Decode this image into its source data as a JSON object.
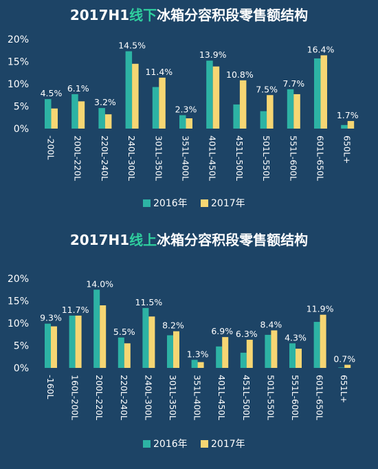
{
  "colors": {
    "background": "#1d4466",
    "series_2016": "#2db3a4",
    "series_2017": "#f6d673",
    "highlight": "#2fcf9e",
    "text": "#ffffff"
  },
  "chart_data": [
    {
      "type": "bar",
      "title_parts": [
        "2017H1",
        "线下",
        "冰箱分容积段零售额结构"
      ],
      "categories": [
        "-200L",
        "200L-220L",
        "220L-240L",
        "240L-300L",
        "301L-350L",
        "351L-400L",
        "401L-450L",
        "451L-500L",
        "501L-550L",
        "551L-600L",
        "601L-650L",
        "650L+"
      ],
      "series": [
        {
          "name": "2016年",
          "values": [
            6.6,
            7.7,
            4.6,
            17.3,
            9.3,
            3.0,
            15.2,
            5.4,
            3.9,
            8.8,
            15.7,
            0.8
          ]
        },
        {
          "name": "2017年",
          "values": [
            4.5,
            6.1,
            3.2,
            14.5,
            11.4,
            2.3,
            13.9,
            10.8,
            7.5,
            7.7,
            16.4,
            1.7
          ]
        }
      ],
      "data_labels": [
        "4.5%",
        "6.1%",
        "3.2%",
        "14.5%",
        "11.4%",
        "2.3%",
        "13.9%",
        "10.8%",
        "7.5%",
        "7.7%",
        "16.4%",
        "1.7%"
      ],
      "yticks": [
        "0%",
        "5%",
        "10%",
        "15%",
        "20%"
      ],
      "ylim": [
        0,
        20
      ],
      "legend_position": "bottom-center"
    },
    {
      "type": "bar",
      "title_parts": [
        "2017H1",
        "线上",
        "冰箱分容积段零售额结构"
      ],
      "categories": [
        "-160L",
        "160L-200L",
        "200L-220L",
        "220L-240L",
        "240L-300L",
        "301L-350L",
        "351L-400L",
        "401L-450L",
        "451L-500L",
        "501L-550L",
        "551L-600L",
        "601L-650L",
        "651L+"
      ],
      "series": [
        {
          "name": "2016年",
          "values": [
            9.9,
            11.7,
            17.5,
            6.8,
            13.4,
            7.3,
            1.8,
            4.8,
            3.4,
            7.4,
            5.5,
            10.3,
            0.1
          ]
        },
        {
          "name": "2017年",
          "values": [
            9.3,
            11.7,
            14.0,
            5.5,
            11.5,
            8.2,
            1.3,
            6.9,
            6.3,
            8.4,
            4.3,
            11.9,
            0.7
          ]
        }
      ],
      "data_labels": [
        "9.3%",
        "11.7%",
        "14.0%",
        "5.5%",
        "11.5%",
        "8.2%",
        "1.3%",
        "6.9%",
        "6.3%",
        "8.4%",
        "4.3%",
        "11.9%",
        "0.7%"
      ],
      "yticks": [
        "0%",
        "5%",
        "10%",
        "15%",
        "20%"
      ],
      "ylim": [
        0,
        20
      ],
      "legend_position": "bottom-center"
    }
  ]
}
